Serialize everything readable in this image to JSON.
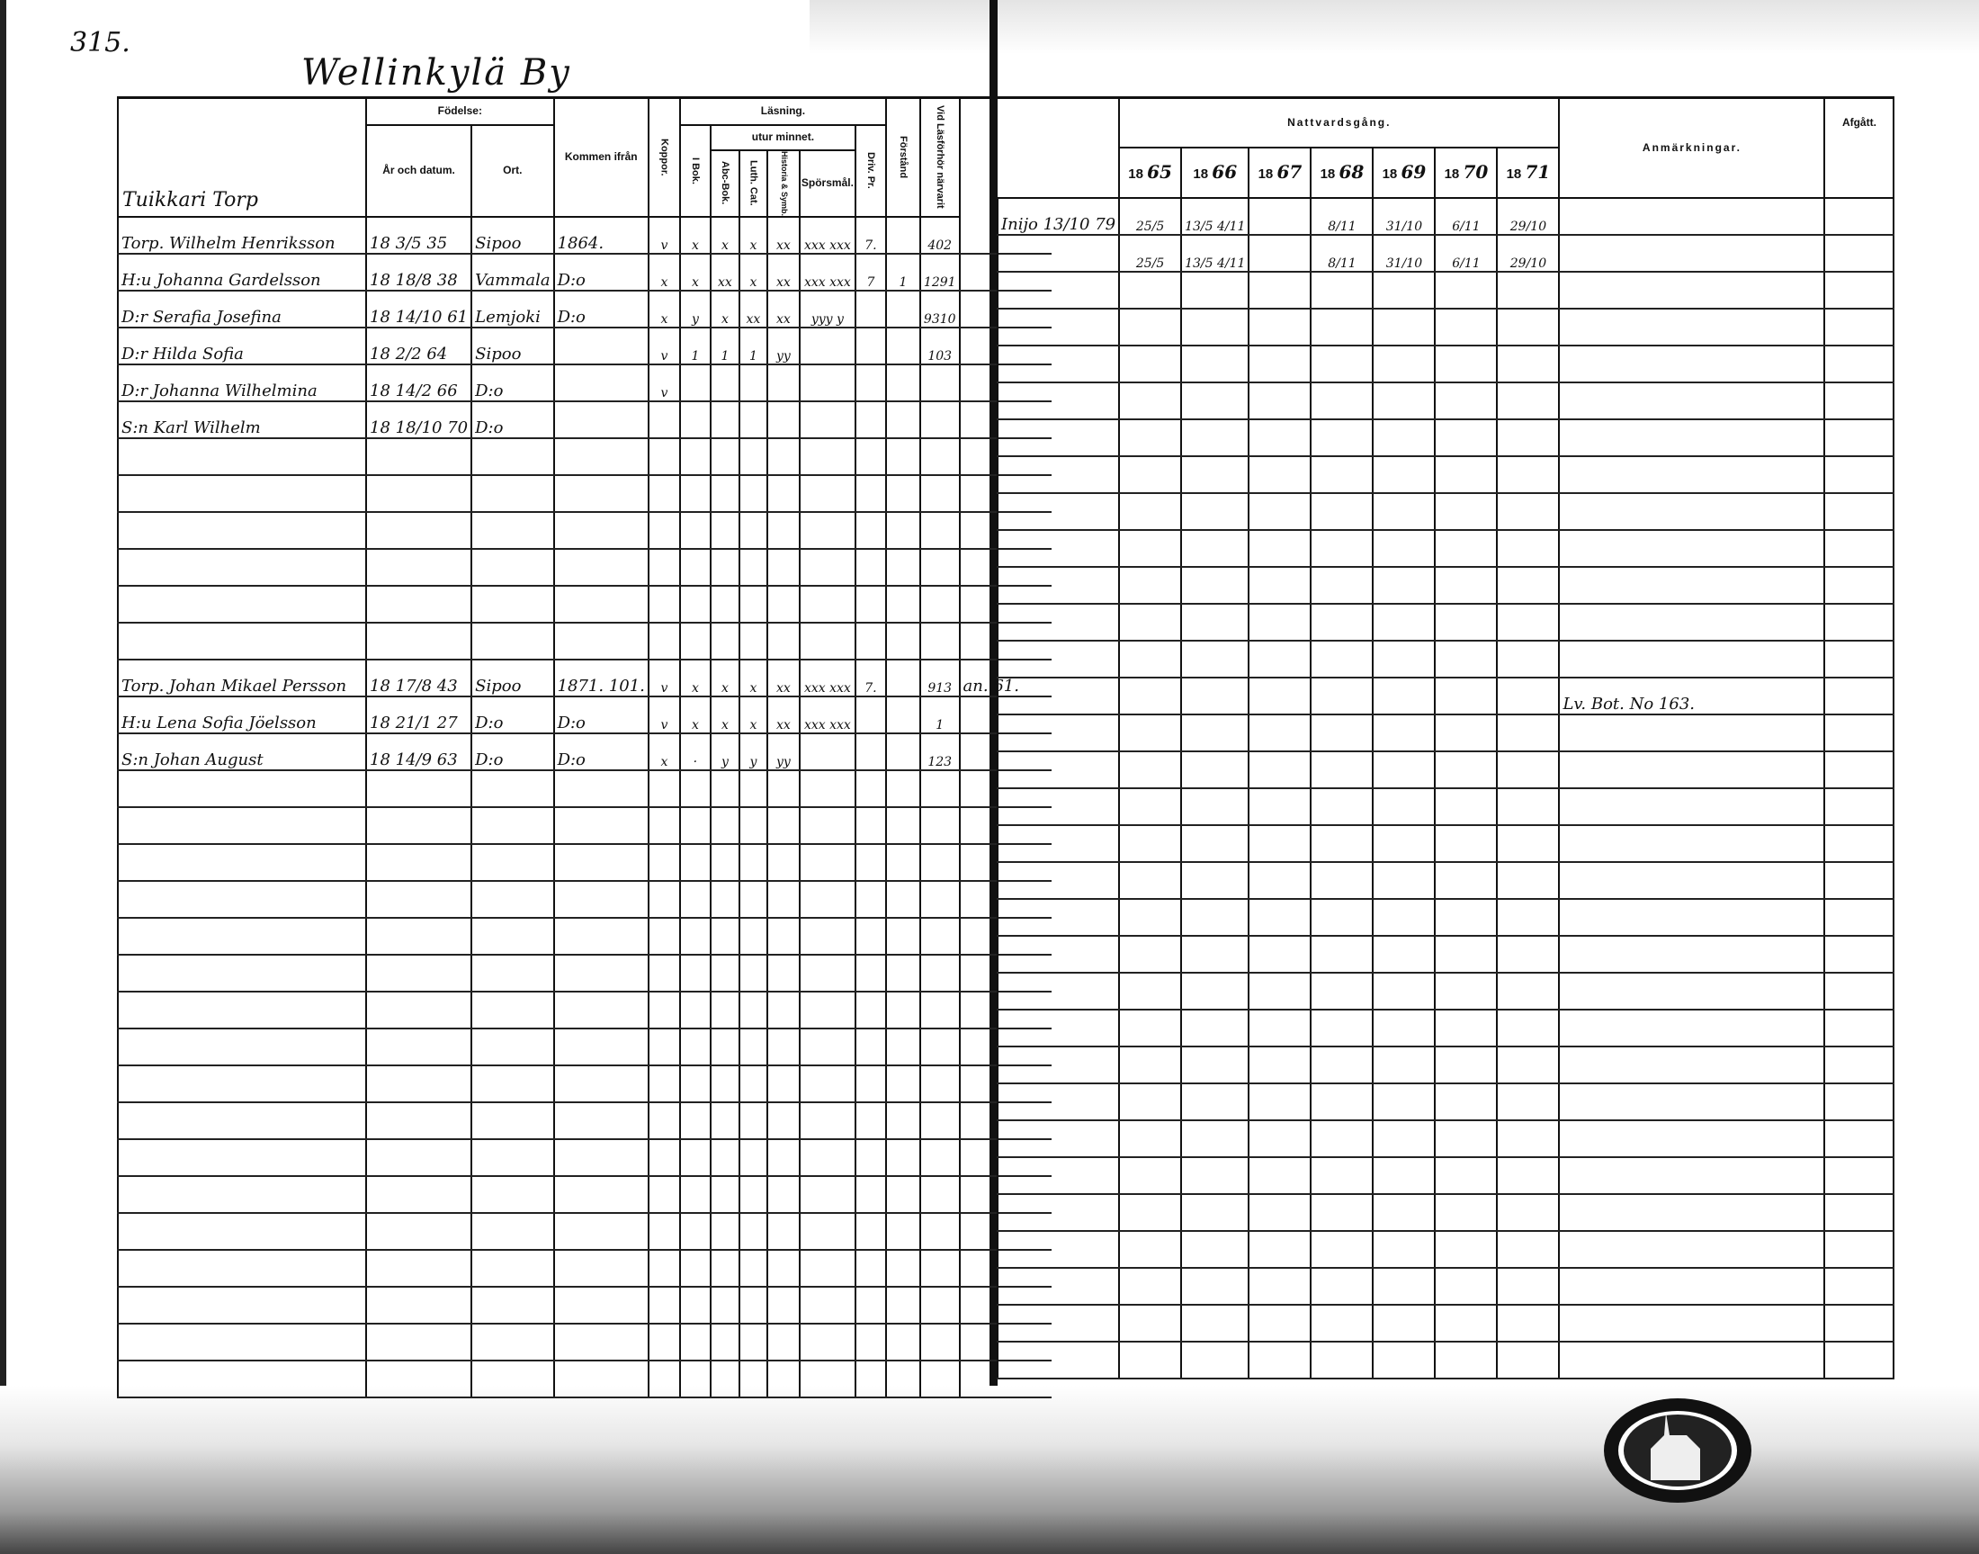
{
  "page_number": "315.",
  "village_title": "Wellinkylä By",
  "left": {
    "headers": {
      "household": "Tuikkari Torp",
      "birth": "Födelse:",
      "year_date": "År och datum.",
      "place": "Ort.",
      "came_from": "Kommen ifrån",
      "smallpox": "Koppor.",
      "reading": "Läsning.",
      "in_book": "I Bok.",
      "from_memory": "utur minnet.",
      "abc_book": "Abc-Bok.",
      "luth_cat": "Luth. Cat.",
      "hist_symb": "Historia & Symb.",
      "questions": "Spörsmål.",
      "driv_pr": "Driv. Pr.",
      "understanding": "Förstånd",
      "examination": "Vid Läsförhör närvarit"
    },
    "rows": [
      {
        "name": "Torp. Wilhelm Henriksson",
        "year": "18 3/5 35",
        "place": "Sipoo",
        "came": "1864.",
        "marks": [
          "v",
          "x",
          "x",
          "x",
          "xx",
          "xxx xxx",
          "7.",
          ""
        ],
        "exam": "402",
        "ext": ""
      },
      {
        "name": "H:u Johanna Gardelsson",
        "year": "18 18/8 38",
        "place": "Vammala",
        "came": "D:o",
        "marks": [
          "x",
          "x",
          "xx",
          "x",
          "xx",
          "xxx xxx",
          "7",
          "1"
        ],
        "exam": "1291",
        "ext": ""
      },
      {
        "name": "D:r Serafia Josefina",
        "year": "18 14/10 61",
        "place": "Lemjoki",
        "came": "D:o",
        "marks": [
          "x",
          "y",
          "x",
          "xx",
          "xx",
          "yyy y",
          "",
          ""
        ],
        "exam": "9310",
        "ext": ""
      },
      {
        "name": "D:r Hilda Sofia",
        "year": "18 2/2 64",
        "place": "Sipoo",
        "came": "",
        "marks": [
          "v",
          "1",
          "1",
          "1",
          "yy",
          "",
          "",
          ""
        ],
        "exam": "103",
        "ext": ""
      },
      {
        "name": "D:r Johanna Wilhelmina",
        "year": "18 14/2 66",
        "place": "D:o",
        "came": "",
        "marks": [
          "v",
          "",
          "",
          "",
          "",
          "",
          "",
          ""
        ],
        "exam": "",
        "ext": ""
      },
      {
        "name": "S:n Karl Wilhelm",
        "year": "18 18/10 70",
        "place": "D:o",
        "came": "",
        "marks": [
          "",
          "",
          "",
          "",
          "",
          "",
          "",
          ""
        ],
        "exam": "",
        "ext": ""
      },
      {},
      {},
      {},
      {},
      {},
      {},
      {
        "name": "Torp. Johan Mikael Persson",
        "year": "18 17/8 43",
        "place": "Sipoo",
        "came": "1871. 101.",
        "marks": [
          "v",
          "x",
          "x",
          "x",
          "xx",
          "xxx xxx",
          "7.",
          ""
        ],
        "exam": "913",
        "ext": "an. 61."
      },
      {
        "name": "H:u Lena Sofia Jöelsson",
        "year": "18 21/1 27",
        "place": "D:o",
        "came": "D:o",
        "marks": [
          "v",
          "x",
          "x",
          "x",
          "xx",
          "xxx xxx",
          "",
          ""
        ],
        "exam": "1",
        "ext": ""
      },
      {
        "name": "S:n Johan August",
        "year": "18 14/9 63",
        "place": "D:o",
        "came": "D:o",
        "marks": [
          "x",
          "·",
          "y",
          "y",
          "yy",
          "",
          "",
          ""
        ],
        "exam": "123",
        "ext": ""
      }
    ]
  },
  "right": {
    "headers": {
      "communion": "Nattvardsgång.",
      "years": [
        {
          "prefix": "18",
          "suffix": "65"
        },
        {
          "prefix": "18",
          "suffix": "66"
        },
        {
          "prefix": "18",
          "suffix": "67"
        },
        {
          "prefix": "18",
          "suffix": "68"
        },
        {
          "prefix": "18",
          "suffix": "69"
        },
        {
          "prefix": "18",
          "suffix": "70"
        },
        {
          "prefix": "18",
          "suffix": "71"
        }
      ],
      "remarks": "Anmärkningar.",
      "departed": "Afgått."
    },
    "rows": [
      {
        "first": "Inijo 13/10 79",
        "dates": [
          "25/5",
          "13/5 4/11",
          "",
          "8/11",
          "31/10",
          "6/11",
          "29/10"
        ],
        "remarks": "",
        "departed": ""
      },
      {
        "first": "",
        "dates": [
          "25/5",
          "13/5 4/11",
          "",
          "8/11",
          "31/10",
          "6/11",
          "29/10"
        ],
        "remarks": "",
        "departed": ""
      },
      {},
      {},
      {},
      {},
      {},
      {},
      {},
      {},
      {},
      {},
      {},
      {
        "first": "",
        "dates": [
          "",
          "",
          "",
          "",
          "",
          "",
          ""
        ],
        "remarks": "Lv. Bot. No 163.",
        "departed": ""
      }
    ]
  },
  "stamp": {
    "shape": "parish-seal-with-church"
  }
}
